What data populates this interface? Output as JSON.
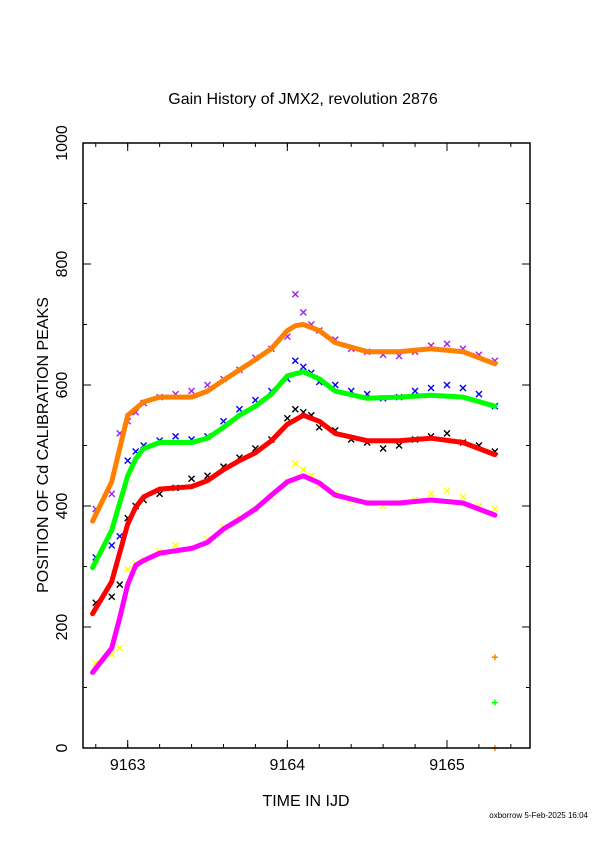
{
  "chart_data": {
    "type": "scatter",
    "title": "Gain History of JMX2, revolution 2876",
    "xlabel": "TIME IN IJD",
    "ylabel": "POSITION OF Cd CALIBRATION PEAKS",
    "xlim": [
      9162.72,
      9165.52
    ],
    "ylim": [
      0,
      1000
    ],
    "x_ticks": [
      "9163",
      "9164",
      "9165"
    ],
    "y_ticks": [
      "0",
      "200",
      "400",
      "600",
      "800",
      "1000"
    ],
    "grid": false,
    "series": [
      {
        "color": "#a020f0",
        "marker": "x",
        "fit_color": "#ff7f00",
        "x": [
          9162.8,
          9162.9,
          9162.95,
          9163.0,
          9163.05,
          9163.1,
          9163.2,
          9163.3,
          9163.4,
          9163.5,
          9163.6,
          9163.7,
          9163.8,
          9163.9,
          9164.0,
          9164.05,
          9164.1,
          9164.15,
          9164.2,
          9164.3,
          9164.4,
          9164.5,
          9164.6,
          9164.7,
          9164.8,
          9164.9,
          9165.0,
          9165.1,
          9165.2,
          9165.3
        ],
        "y": [
          395,
          420,
          520,
          540,
          555,
          570,
          580,
          585,
          590,
          600,
          610,
          625,
          645,
          660,
          680,
          750,
          720,
          700,
          690,
          675,
          660,
          655,
          650,
          648,
          655,
          665,
          668,
          660,
          650,
          640
        ],
        "fit_x": [
          9162.78,
          9162.9,
          9163.0,
          9163.1,
          9163.2,
          9163.4,
          9163.5,
          9163.6,
          9163.7,
          9163.8,
          9163.9,
          9164.0,
          9164.05,
          9164.1,
          9164.2,
          9164.3,
          9164.5,
          9164.7,
          9164.9,
          9165.1,
          9165.3
        ],
        "fit_y": [
          375,
          440,
          550,
          572,
          580,
          580,
          590,
          608,
          625,
          642,
          660,
          690,
          698,
          700,
          690,
          670,
          655,
          655,
          660,
          655,
          635
        ]
      },
      {
        "color": "#0000ff",
        "marker": "x",
        "fit_color": "#00ff00",
        "x": [
          9162.8,
          9162.9,
          9162.95,
          9163.0,
          9163.05,
          9163.1,
          9163.2,
          9163.3,
          9163.4,
          9163.5,
          9163.6,
          9163.7,
          9163.8,
          9163.9,
          9164.0,
          9164.05,
          9164.1,
          9164.15,
          9164.2,
          9164.3,
          9164.4,
          9164.5,
          9164.6,
          9164.7,
          9164.8,
          9164.9,
          9165.0,
          9165.1,
          9165.2,
          9165.3
        ],
        "y": [
          315,
          335,
          350,
          475,
          490,
          500,
          508,
          515,
          510,
          515,
          540,
          560,
          575,
          590,
          610,
          640,
          630,
          620,
          605,
          600,
          590,
          585,
          578,
          580,
          590,
          595,
          600,
          595,
          585,
          565
        ],
        "fit_x": [
          9162.78,
          9162.9,
          9163.0,
          9163.05,
          9163.1,
          9163.2,
          9163.4,
          9163.5,
          9163.6,
          9163.7,
          9163.8,
          9163.9,
          9164.0,
          9164.1,
          9164.2,
          9164.3,
          9164.5,
          9164.7,
          9164.9,
          9165.1,
          9165.3
        ],
        "fit_y": [
          298,
          360,
          450,
          478,
          495,
          505,
          505,
          512,
          530,
          550,
          565,
          585,
          615,
          622,
          610,
          590,
          578,
          580,
          583,
          580,
          565
        ]
      },
      {
        "color": "#000000",
        "marker": "x",
        "fit_color": "#ff0000",
        "x": [
          9162.8,
          9162.9,
          9162.95,
          9163.0,
          9163.05,
          9163.1,
          9163.2,
          9163.3,
          9163.4,
          9163.5,
          9163.6,
          9163.7,
          9163.8,
          9163.9,
          9164.0,
          9164.05,
          9164.1,
          9164.15,
          9164.2,
          9164.3,
          9164.4,
          9164.5,
          9164.6,
          9164.7,
          9164.8,
          9164.9,
          9165.0,
          9165.1,
          9165.2,
          9165.3
        ],
        "y": [
          240,
          250,
          270,
          380,
          400,
          410,
          420,
          430,
          445,
          450,
          465,
          480,
          495,
          510,
          545,
          560,
          555,
          550,
          530,
          525,
          510,
          505,
          495,
          500,
          510,
          515,
          520,
          505,
          500,
          490
        ],
        "fit_x": [
          9162.78,
          9162.9,
          9163.0,
          9163.05,
          9163.1,
          9163.2,
          9163.4,
          9163.5,
          9163.6,
          9163.7,
          9163.8,
          9163.9,
          9164.0,
          9164.1,
          9164.2,
          9164.3,
          9164.5,
          9164.7,
          9164.9,
          9165.1,
          9165.3
        ],
        "fit_y": [
          222,
          275,
          370,
          398,
          415,
          428,
          432,
          442,
          460,
          475,
          488,
          508,
          535,
          550,
          540,
          520,
          508,
          508,
          512,
          505,
          485
        ]
      },
      {
        "color": "#ffff00",
        "marker": "x",
        "fit_color": "#ff00ff",
        "x": [
          9162.8,
          9162.9,
          9162.95,
          9163.0,
          9163.05,
          9163.1,
          9163.2,
          9163.3,
          9163.4,
          9163.5,
          9163.6,
          9163.7,
          9163.8,
          9163.9,
          9164.0,
          9164.05,
          9164.1,
          9164.15,
          9164.2,
          9164.3,
          9164.4,
          9164.5,
          9164.6,
          9164.7,
          9164.8,
          9164.9,
          9165.0,
          9165.1,
          9165.2,
          9165.3
        ],
        "y": [
          140,
          155,
          165,
          295,
          305,
          310,
          325,
          335,
          330,
          345,
          365,
          380,
          395,
          415,
          440,
          470,
          460,
          450,
          435,
          420,
          410,
          405,
          400,
          405,
          410,
          420,
          425,
          415,
          400,
          395
        ],
        "fit_x": [
          9162.78,
          9162.9,
          9162.95,
          9163.0,
          9163.05,
          9163.1,
          9163.2,
          9163.4,
          9163.5,
          9163.6,
          9163.7,
          9163.8,
          9163.9,
          9164.0,
          9164.1,
          9164.2,
          9164.3,
          9164.5,
          9164.7,
          9164.9,
          9165.1,
          9165.3
        ],
        "fit_y": [
          125,
          165,
          215,
          270,
          302,
          310,
          322,
          330,
          340,
          362,
          378,
          395,
          418,
          440,
          450,
          438,
          418,
          405,
          405,
          410,
          405,
          385
        ]
      }
    ],
    "extra_points": [
      {
        "x": 9165.3,
        "y": 150,
        "color": "#ff7f00",
        "marker": "+"
      },
      {
        "x": 9165.3,
        "y": 75,
        "color": "#00ff00",
        "marker": "+"
      },
      {
        "x": 9165.3,
        "y": 0,
        "color": "#ff7f00",
        "marker": "+"
      }
    ],
    "footer": "oxborrow  5-Feb-2025 16:04"
  }
}
